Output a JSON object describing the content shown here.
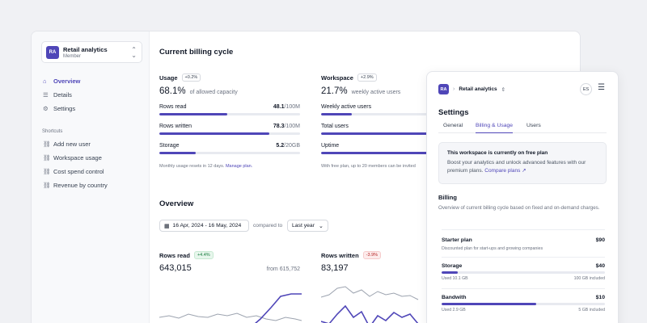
{
  "sidebar": {
    "workspace": {
      "initials": "RA",
      "name": "Retail analytics",
      "role": "Member"
    },
    "nav": [
      {
        "icon": "⌂",
        "label": "Overview",
        "active": true
      },
      {
        "icon": "☰",
        "label": "Details",
        "active": false
      },
      {
        "icon": "⚙",
        "label": "Settings",
        "active": false
      }
    ],
    "shortcuts_heading": "Shortcuts",
    "shortcuts": [
      {
        "icon": "🔗",
        "label": "Add new user"
      },
      {
        "icon": "🔗",
        "label": "Workspace usage"
      },
      {
        "icon": "🔗",
        "label": "Cost spend control"
      },
      {
        "icon": "🔗",
        "label": "Revenue by country"
      }
    ]
  },
  "billing_cycle": {
    "title": "Current billing cycle",
    "usage": {
      "title": "Usage",
      "badge": "+0.2%",
      "value": "68.1%",
      "value_sub": "of allowed capacity",
      "rows": [
        {
          "label": "Rows read",
          "value": "48.1",
          "limit": "/100M",
          "fraction": 0.481
        },
        {
          "label": "Rows written",
          "value": "78.3",
          "limit": "/100M",
          "fraction": 0.783
        },
        {
          "label": "Storage",
          "value": "5.2",
          "limit": "/20GB",
          "fraction": 0.26
        }
      ],
      "note": "Monthly usage resets in 12 days.",
      "note_link": "Manage plan."
    },
    "workspace": {
      "title": "Workspace",
      "badge": "+2.9%",
      "value": "21.7%",
      "value_sub": "weekly active users",
      "rows": [
        {
          "label": "Weekly active users",
          "fraction": 0.217
        },
        {
          "label": "Total users",
          "fraction": 0.82
        },
        {
          "label": "Uptime",
          "fraction": 0.82
        }
      ],
      "note": "With free plan, up to 20 members can be invited"
    }
  },
  "overview": {
    "title": "Overview",
    "date_range": "16 Apr, 2024 - 16 May, 2024",
    "compared_label": "compared to",
    "compare_period": "Last year",
    "cards": [
      {
        "title": "Rows read",
        "badge": "+4.4%",
        "badge_type": "pos",
        "value": "643,015",
        "from": "from 615,752"
      },
      {
        "title": "Rows written",
        "badge": "-3.9%",
        "badge_type": "neg",
        "value": "83,197",
        "from": ""
      }
    ]
  },
  "settings": {
    "initials": "RA",
    "workspace": "Retail analytics",
    "user_initials": "ES",
    "title": "Settings",
    "tabs": [
      {
        "label": "General",
        "active": false
      },
      {
        "label": "Billing & Usage",
        "active": true
      },
      {
        "label": "Users",
        "active": false
      }
    ],
    "plan_box": {
      "title": "This workspace is currently on free plan",
      "desc": "Boost your analytics and unlock advanced features with our premium plans.",
      "link": "Compare plans ↗"
    },
    "billing_title": "Billing",
    "billing_desc": "Overview of current billing cycle based on fixed and on-demand charges.",
    "items": [
      {
        "label": "Starter plan",
        "price": "$90",
        "sub": "Discounted plan for start-ups and growing companies"
      },
      {
        "label": "Storage",
        "price": "$40",
        "used": "Used 10.1 GB",
        "included": "100 GB included",
        "fraction": 0.1
      },
      {
        "label": "Bandwith",
        "price": "$10",
        "used": "Used 2.9 GB",
        "included": "5 GB included",
        "fraction": 0.58
      }
    ]
  },
  "colors": {
    "accent": "#4f46b8",
    "muted": "#6b7280",
    "positive": "#157a3c",
    "negative": "#b42323"
  }
}
